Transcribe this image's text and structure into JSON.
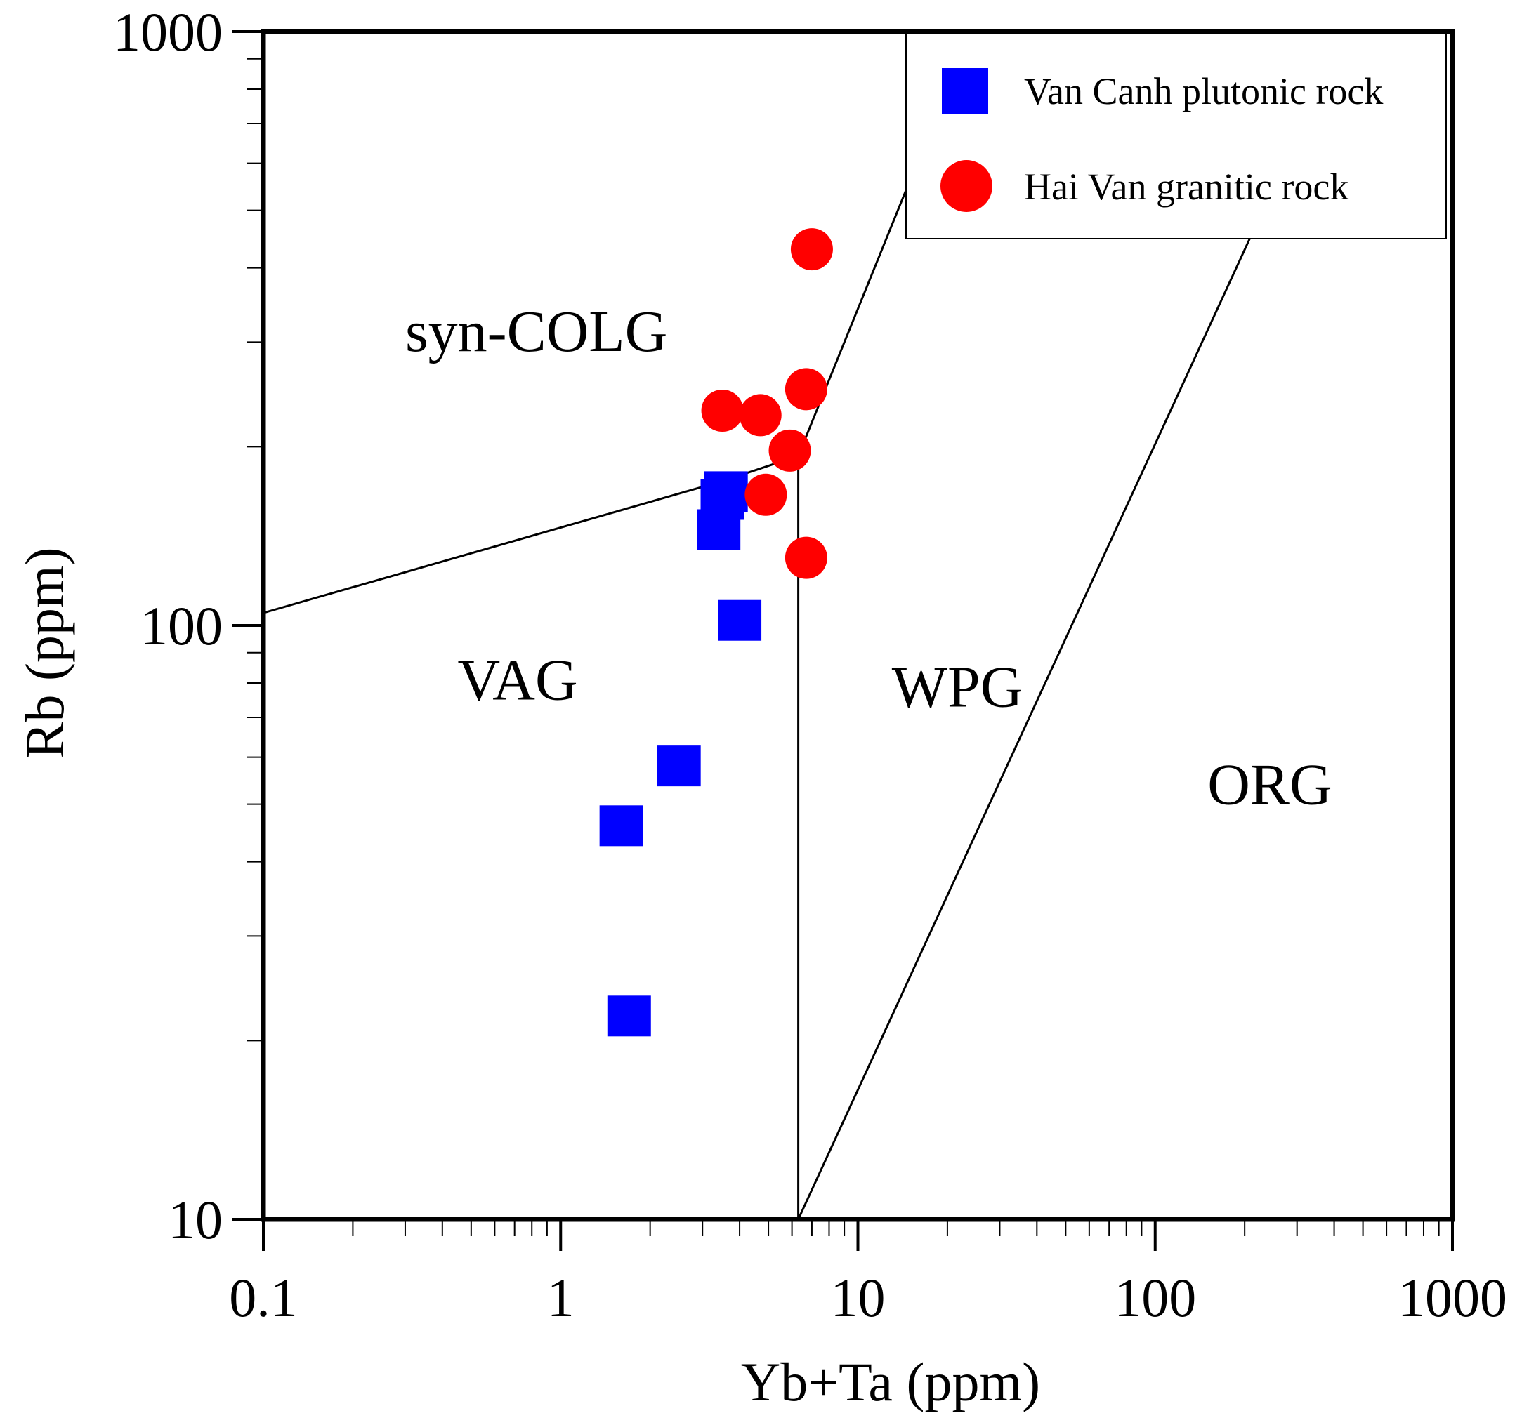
{
  "chart_data": {
    "type": "scatter",
    "title": "",
    "xlabel": "Yb+Ta (ppm)",
    "ylabel": "Rb (ppm)",
    "xscale": "log",
    "yscale": "log",
    "xlim": [
      0.1,
      1000
    ],
    "ylim": [
      10,
      1000
    ],
    "x_tick_labels": [
      "0.1",
      "1",
      "10",
      "100",
      "1000"
    ],
    "y_tick_labels": [
      "10",
      "100",
      "1000"
    ],
    "x_ticks": [
      0.1,
      1,
      10,
      100,
      1000
    ],
    "y_ticks": [
      10,
      100,
      1000
    ],
    "grid": false,
    "legend_position": "top-right",
    "series": [
      {
        "name": "Van Canh plutonic rock",
        "marker": "square",
        "color": "#0000ff",
        "points": [
          {
            "x": 3.6,
            "y": 168
          },
          {
            "x": 3.5,
            "y": 163
          },
          {
            "x": 3.4,
            "y": 145
          },
          {
            "x": 4.0,
            "y": 102
          },
          {
            "x": 2.5,
            "y": 58
          },
          {
            "x": 1.6,
            "y": 46
          },
          {
            "x": 1.7,
            "y": 22
          }
        ]
      },
      {
        "name": "Hai Van granitic rock",
        "marker": "circle",
        "color": "#ff0000",
        "points": [
          {
            "x": 7.0,
            "y": 430
          },
          {
            "x": 6.7,
            "y": 250
          },
          {
            "x": 3.5,
            "y": 230
          },
          {
            "x": 4.7,
            "y": 226
          },
          {
            "x": 5.9,
            "y": 197
          },
          {
            "x": 4.9,
            "y": 166
          },
          {
            "x": 6.7,
            "y": 130
          }
        ]
      }
    ],
    "regions": [
      {
        "label": "syn-COLG",
        "x": 0.3,
        "y": 290
      },
      {
        "label": "VAG",
        "x": 0.45,
        "y": 75
      },
      {
        "label": "WPG",
        "x": 13,
        "y": 73
      },
      {
        "label": "ORG",
        "x": 150,
        "y": 50
      }
    ],
    "boundaries": [
      {
        "name": "vag-syncolg",
        "points": [
          [
            0.1,
            105
          ],
          [
            3.5,
            175
          ],
          [
            6.3,
            193
          ]
        ]
      },
      {
        "name": "syncolg-wpg",
        "points": [
          [
            6.3,
            193
          ],
          [
            14.5,
            540
          ]
        ]
      },
      {
        "name": "vag-wpg",
        "points": [
          [
            6.3,
            10
          ],
          [
            6.3,
            193
          ]
        ]
      },
      {
        "name": "wpg-org",
        "points": [
          [
            6.3,
            10
          ],
          [
            230,
            500
          ]
        ]
      }
    ]
  }
}
